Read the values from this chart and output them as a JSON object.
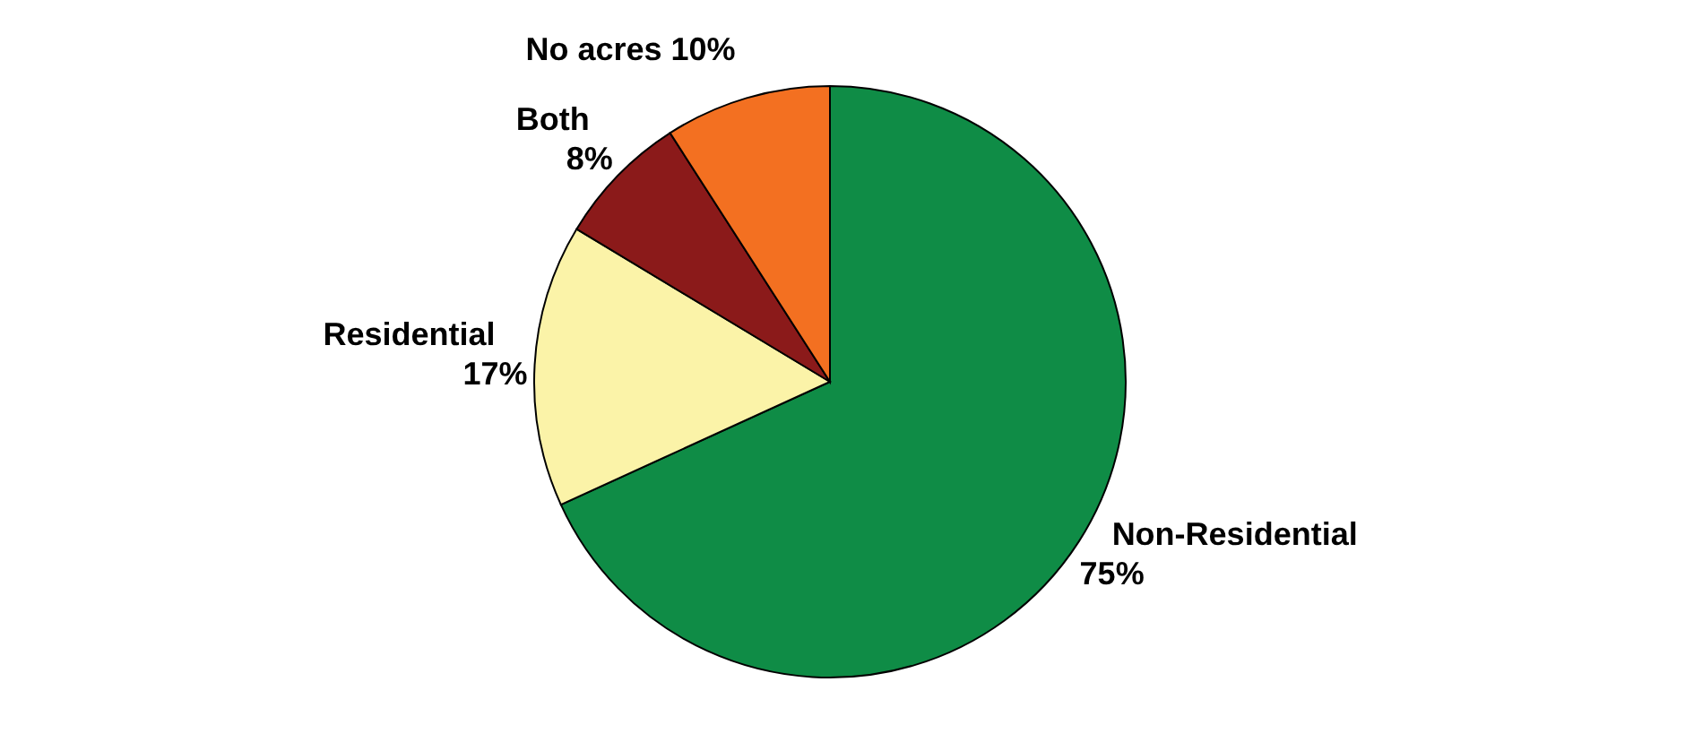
{
  "chart_data": {
    "type": "pie",
    "categories": [
      "Non-Residential",
      "Residential",
      "Both",
      "No acres"
    ],
    "values": [
      75,
      17,
      8,
      10
    ],
    "value_labels": [
      "75%",
      "17%",
      "8%",
      "10%"
    ],
    "colors": [
      "#0f8c46",
      "#fbf3a8",
      "#8b1a1a",
      "#f37021"
    ]
  }
}
